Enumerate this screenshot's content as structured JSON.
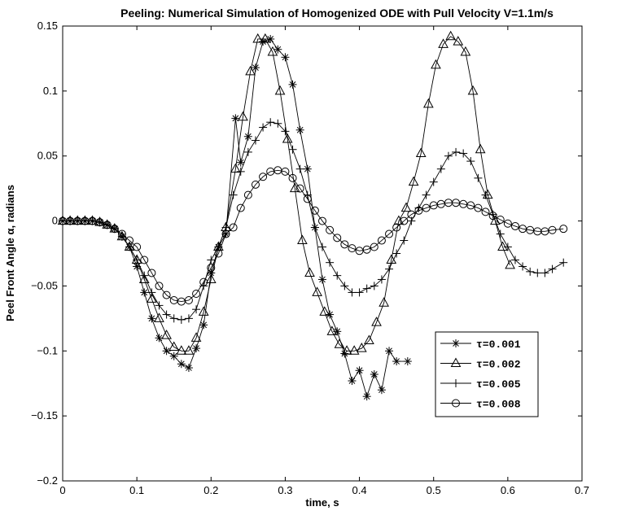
{
  "chart_data": {
    "type": "line",
    "title": "Peeling: Numerical Simulation of Homogenized ODE with Pull Velocity V=1.1m/s",
    "xlabel": "time, s",
    "ylabel": "Peel Front Angle α, radians",
    "xlim": [
      0,
      0.7
    ],
    "ylim": [
      -0.2,
      0.15
    ],
    "x_ticks": [
      0,
      0.1,
      0.2,
      0.3,
      0.4,
      0.5,
      0.6,
      0.7
    ],
    "x_tick_labels": [
      "0",
      "0.1",
      "0.2",
      "0.3",
      "0.4",
      "0.5",
      "0.6",
      "0.7"
    ],
    "y_ticks": [
      -0.2,
      -0.15,
      -0.1,
      -0.05,
      0,
      0.05,
      0.1,
      0.15
    ],
    "y_tick_labels": [
      "−0.2",
      "−0.15",
      "−0.1",
      "−0.05",
      "0",
      "0.05",
      "0.1",
      "0.15"
    ],
    "grid": false,
    "legend_position": "lower-right",
    "series": [
      {
        "name": "τ=0.001",
        "marker": "star",
        "x": [
          0,
          0.01,
          0.02,
          0.03,
          0.04,
          0.05,
          0.06,
          0.07,
          0.08,
          0.09,
          0.1,
          0.11,
          0.12,
          0.13,
          0.14,
          0.15,
          0.16,
          0.17,
          0.18,
          0.19,
          0.2,
          0.21,
          0.22,
          0.233,
          0.24,
          0.25,
          0.26,
          0.27,
          0.28,
          0.29,
          0.3,
          0.31,
          0.32,
          0.33,
          0.34,
          0.35,
          0.36,
          0.37,
          0.38,
          0.39,
          0.4,
          0.41,
          0.42,
          0.43,
          0.44,
          0.45,
          0.465
        ],
        "y": [
          0,
          0,
          0,
          0,
          0,
          -0.001,
          -0.003,
          -0.006,
          -0.012,
          -0.02,
          -0.035,
          -0.055,
          -0.075,
          -0.09,
          -0.1,
          -0.104,
          -0.11,
          -0.113,
          -0.098,
          -0.08,
          -0.04,
          -0.02,
          -0.01,
          0.079,
          0.045,
          0.065,
          0.118,
          0.138,
          0.14,
          0.132,
          0.126,
          0.105,
          0.07,
          0.04,
          -0.005,
          -0.045,
          -0.072,
          -0.085,
          -0.102,
          -0.123,
          -0.115,
          -0.135,
          -0.118,
          -0.13,
          -0.1,
          -0.108,
          -0.108
        ]
      },
      {
        "name": "τ=0.002",
        "marker": "triangle",
        "x": [
          0,
          0.01,
          0.02,
          0.03,
          0.04,
          0.05,
          0.06,
          0.07,
          0.08,
          0.09,
          0.1,
          0.11,
          0.12,
          0.13,
          0.14,
          0.15,
          0.16,
          0.17,
          0.18,
          0.19,
          0.2,
          0.21,
          0.22,
          0.233,
          0.243,
          0.253,
          0.263,
          0.273,
          0.283,
          0.293,
          0.303,
          0.313,
          0.323,
          0.333,
          0.343,
          0.353,
          0.363,
          0.373,
          0.383,
          0.393,
          0.403,
          0.413,
          0.423,
          0.433,
          0.443,
          0.453,
          0.463,
          0.473,
          0.483,
          0.493,
          0.503,
          0.513,
          0.523,
          0.533,
          0.543,
          0.553,
          0.563,
          0.573,
          0.583,
          0.593,
          0.603
        ],
        "y": [
          0,
          0,
          0,
          0,
          0,
          -0.001,
          -0.003,
          -0.006,
          -0.012,
          -0.02,
          -0.03,
          -0.045,
          -0.06,
          -0.075,
          -0.088,
          -0.097,
          -0.1,
          -0.1,
          -0.09,
          -0.07,
          -0.045,
          -0.02,
          -0.005,
          0.04,
          0.08,
          0.115,
          0.14,
          0.14,
          0.13,
          0.1,
          0.063,
          0.025,
          -0.015,
          -0.04,
          -0.055,
          -0.07,
          -0.085,
          -0.095,
          -0.1,
          -0.1,
          -0.098,
          -0.092,
          -0.078,
          -0.063,
          -0.03,
          0.0,
          0.01,
          0.03,
          0.052,
          0.09,
          0.12,
          0.136,
          0.142,
          0.138,
          0.13,
          0.1,
          0.055,
          0.02,
          0.0,
          -0.02,
          -0.034
        ],
        "_note": ""
      },
      {
        "name": "τ=0.005",
        "marker": "plus",
        "x": [
          0,
          0.01,
          0.02,
          0.03,
          0.04,
          0.05,
          0.06,
          0.07,
          0.08,
          0.09,
          0.1,
          0.11,
          0.12,
          0.13,
          0.14,
          0.15,
          0.16,
          0.17,
          0.18,
          0.19,
          0.2,
          0.21,
          0.22,
          0.23,
          0.24,
          0.25,
          0.26,
          0.27,
          0.28,
          0.29,
          0.3,
          0.31,
          0.32,
          0.33,
          0.34,
          0.35,
          0.36,
          0.37,
          0.38,
          0.39,
          0.4,
          0.41,
          0.42,
          0.43,
          0.44,
          0.45,
          0.46,
          0.47,
          0.48,
          0.49,
          0.5,
          0.51,
          0.52,
          0.53,
          0.54,
          0.55,
          0.56,
          0.57,
          0.58,
          0.59,
          0.6,
          0.61,
          0.62,
          0.63,
          0.64,
          0.65,
          0.66,
          0.675
        ],
        "y": [
          0,
          0,
          0,
          0,
          0,
          -0.001,
          -0.003,
          -0.006,
          -0.012,
          -0.02,
          -0.03,
          -0.042,
          -0.055,
          -0.065,
          -0.072,
          -0.075,
          -0.076,
          -0.075,
          -0.068,
          -0.05,
          -0.03,
          -0.02,
          -0.005,
          0.02,
          0.038,
          0.053,
          0.062,
          0.072,
          0.076,
          0.075,
          0.069,
          0.055,
          0.04,
          0.02,
          -0.005,
          -0.02,
          -0.032,
          -0.042,
          -0.05,
          -0.055,
          -0.055,
          -0.052,
          -0.05,
          -0.045,
          -0.037,
          -0.025,
          -0.015,
          0.0,
          0.01,
          0.02,
          0.03,
          0.04,
          0.05,
          0.053,
          0.052,
          0.046,
          0.033,
          0.02,
          0.005,
          -0.01,
          -0.02,
          -0.03,
          -0.035,
          -0.039,
          -0.04,
          -0.04,
          -0.037,
          -0.032
        ]
      },
      {
        "name": "τ=0.008",
        "marker": "circle",
        "x": [
          0,
          0.01,
          0.02,
          0.03,
          0.04,
          0.05,
          0.06,
          0.07,
          0.08,
          0.09,
          0.1,
          0.11,
          0.12,
          0.13,
          0.14,
          0.15,
          0.16,
          0.17,
          0.18,
          0.19,
          0.2,
          0.21,
          0.22,
          0.23,
          0.24,
          0.25,
          0.26,
          0.27,
          0.28,
          0.29,
          0.3,
          0.31,
          0.32,
          0.33,
          0.34,
          0.35,
          0.36,
          0.37,
          0.38,
          0.39,
          0.4,
          0.41,
          0.42,
          0.43,
          0.44,
          0.45,
          0.46,
          0.47,
          0.48,
          0.49,
          0.5,
          0.51,
          0.52,
          0.53,
          0.54,
          0.55,
          0.56,
          0.57,
          0.58,
          0.59,
          0.6,
          0.61,
          0.62,
          0.63,
          0.64,
          0.65,
          0.66,
          0.675
        ],
        "y": [
          0,
          0,
          0,
          0,
          0,
          -0.001,
          -0.003,
          -0.006,
          -0.01,
          -0.015,
          -0.02,
          -0.03,
          -0.04,
          -0.05,
          -0.057,
          -0.061,
          -0.062,
          -0.061,
          -0.056,
          -0.047,
          -0.036,
          -0.025,
          -0.01,
          -0.005,
          0.01,
          0.02,
          0.028,
          0.034,
          0.038,
          0.039,
          0.038,
          0.033,
          0.025,
          0.017,
          0.008,
          0.0,
          -0.007,
          -0.013,
          -0.018,
          -0.021,
          -0.023,
          -0.022,
          -0.02,
          -0.015,
          -0.01,
          -0.005,
          0.0,
          0.005,
          0.008,
          0.01,
          0.012,
          0.013,
          0.014,
          0.014,
          0.013,
          0.012,
          0.01,
          0.007,
          0.004,
          0.001,
          -0.002,
          -0.004,
          -0.006,
          -0.007,
          -0.008,
          -0.008,
          -0.007,
          -0.006
        ]
      }
    ]
  }
}
